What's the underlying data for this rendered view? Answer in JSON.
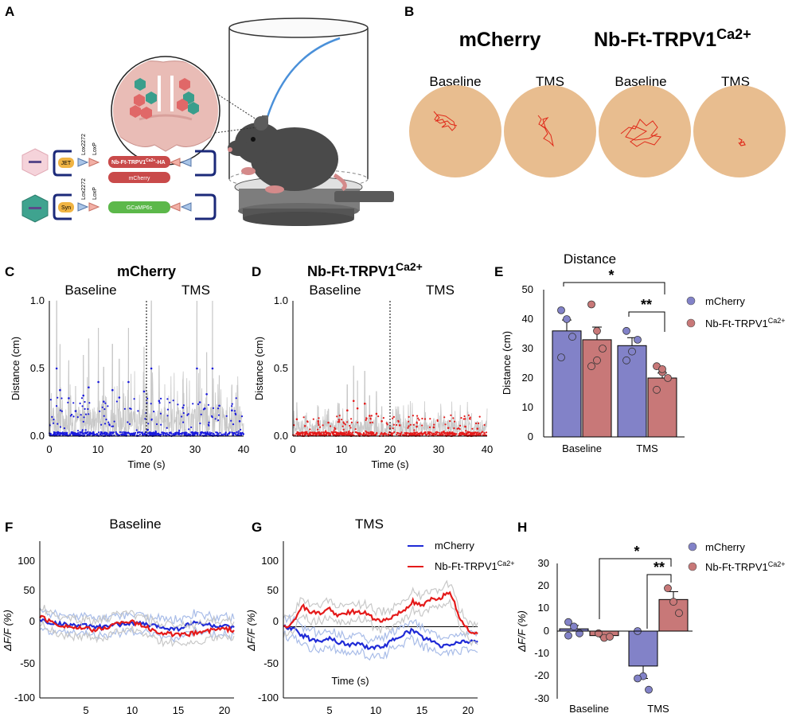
{
  "panel_labels": [
    "A",
    "B",
    "C",
    "D",
    "E",
    "F",
    "G",
    "H"
  ],
  "panel_a": {
    "vector_1": {
      "promoter": "JET",
      "site1": "Lox2272",
      "site2": "LoxP",
      "gene1": "Nb-Ft-TRPV1",
      "gene1_sup": "Ca2+",
      "gene1_suffix": "-HA",
      "gene2": "mCherry"
    },
    "vector_2": {
      "promoter": "Syn",
      "site1": "Lox2272",
      "site2": "LoxP",
      "gene1": "GCaMP6s"
    },
    "colors": {
      "dish": "#e9bcb6",
      "neuron_red": "#e06868",
      "neuron_teal": "#3a9e8c",
      "mouse": "#4a4a4a",
      "fiber": "#4a90d9"
    }
  },
  "panel_b": {
    "group1": "mCherry",
    "group2_main": "Nb-Ft-TRPV1",
    "group2_sup": "Ca2+",
    "arenas": [
      {
        "label": "Baseline",
        "group": "mCherry"
      },
      {
        "label": "TMS",
        "group": "mCherry"
      },
      {
        "label": "Baseline",
        "group": "Nb-Ft-TRPV1Ca2+"
      },
      {
        "label": "TMS",
        "group": "Nb-Ft-TRPV1Ca2+"
      }
    ],
    "arena_color": "#e8bd8f",
    "track_color": "#e02a1a"
  },
  "chart_data": [
    {
      "panel": "C",
      "type": "scatter",
      "title": "mCherry",
      "xlabel": "Time (s)",
      "ylabel": "Distance (cm)",
      "xlim": [
        0,
        40
      ],
      "ylim": [
        0,
        1.0
      ],
      "xticks": [
        "0",
        "10",
        "20",
        "30",
        "40"
      ],
      "yticks": [
        "0.0",
        "0.5",
        "1.0"
      ],
      "phase_labels": [
        "Baseline",
        "TMS"
      ],
      "divider_x": 20,
      "point_color": "#1a1adc",
      "trace_color": "#c8c8c8",
      "peaks": [
        [
          1.5,
          1.0
        ],
        [
          2.2,
          0.68
        ],
        [
          4.0,
          0.56
        ],
        [
          5.4,
          0.37
        ],
        [
          7.0,
          0.6
        ],
        [
          8.1,
          0.72
        ],
        [
          10.1,
          0.8
        ],
        [
          11.2,
          0.51
        ],
        [
          13.0,
          0.68
        ],
        [
          14.4,
          0.57
        ],
        [
          16.3,
          0.8
        ],
        [
          19.5,
          0.66
        ],
        [
          21.0,
          1.0
        ],
        [
          22.6,
          0.52
        ],
        [
          27.5,
          0.42
        ],
        [
          30.4,
          1.0
        ],
        [
          31.0,
          0.5
        ],
        [
          32.4,
          0.62
        ],
        [
          33.6,
          1.0
        ],
        [
          35.0,
          0.45
        ],
        [
          37.6,
          0.38
        ],
        [
          39.2,
          0.22
        ]
      ]
    },
    {
      "panel": "D",
      "type": "scatter",
      "title_main": "Nb-Ft-TRPV1",
      "title_sup": "Ca2+",
      "xlabel": "Time (s)",
      "ylabel": "Distance (cm)",
      "xlim": [
        0,
        40
      ],
      "ylim": [
        0,
        1.0
      ],
      "xticks": [
        "0",
        "10",
        "20",
        "30",
        "40"
      ],
      "yticks": [
        "0.0",
        "0.5",
        "1.0"
      ],
      "phase_labels": [
        "Baseline",
        "TMS"
      ],
      "divider_x": 20,
      "point_color": "#e41a1a",
      "trace_color": "#c8c8c8",
      "peaks": [
        [
          0.8,
          0.25
        ],
        [
          2.5,
          0.15
        ],
        [
          5.2,
          0.22
        ],
        [
          7.3,
          0.2
        ],
        [
          9.5,
          0.24
        ],
        [
          11.2,
          0.38
        ],
        [
          12.5,
          0.52
        ],
        [
          13.3,
          0.41
        ],
        [
          14.8,
          0.48
        ],
        [
          15.8,
          0.3
        ],
        [
          17.2,
          0.33
        ],
        [
          18.3,
          0.22
        ],
        [
          22.0,
          0.16
        ],
        [
          25.5,
          0.14
        ],
        [
          29.0,
          0.13
        ],
        [
          32.0,
          0.12
        ],
        [
          35.5,
          0.14
        ],
        [
          38.0,
          0.11
        ]
      ]
    },
    {
      "panel": "E",
      "type": "bar",
      "title": "Distance",
      "ylabel": "Distance (cm)",
      "ylim": [
        0,
        50
      ],
      "yticks": [
        "0",
        "10",
        "20",
        "30",
        "40",
        "50"
      ],
      "categories": [
        "Baseline",
        "TMS"
      ],
      "series": [
        {
          "name": "mCherry",
          "color": "#8282c8",
          "values": [
            36,
            31
          ],
          "sem": [
            3.7,
            2.7
          ],
          "points": [
            [
              43,
              40,
              34,
              27
            ],
            [
              36,
              29,
              33,
              26
            ]
          ]
        },
        {
          "name": "Nb-Ft-TRPV1",
          "name_sup": "Ca2+",
          "color": "#c87878",
          "values": [
            33,
            20
          ],
          "sem": [
            4.3,
            1.7
          ],
          "points": [
            [
              45,
              36,
              30,
              24,
              26
            ],
            [
              24,
              22,
              20,
              16,
              23
            ]
          ]
        }
      ],
      "significance": [
        {
          "label": "*",
          "between": "mCherry Baseline vs Nb TMS"
        },
        {
          "label": "**",
          "between": "mCherry TMS vs Nb TMS"
        }
      ]
    },
    {
      "panel": "F",
      "type": "line",
      "title": "Baseline",
      "ylabel": "ΔF/F (%)",
      "xlim": [
        0,
        21
      ],
      "ylim": [
        -100,
        120
      ],
      "xticks": [
        "5",
        "10",
        "15",
        "20"
      ],
      "yticks": [
        "100",
        "50",
        "0",
        "-50",
        "-100"
      ],
      "series": [
        {
          "name": "mCherry",
          "color": "#1f2ad6",
          "sem_color": "#a8bce8",
          "x": [
            0,
            1,
            2,
            3,
            4,
            5,
            6,
            7,
            8,
            9,
            10,
            11,
            12,
            13,
            14,
            15,
            16,
            17,
            18,
            19,
            20,
            21
          ],
          "y": [
            10,
            6,
            4,
            3,
            2,
            1,
            0,
            -1,
            2,
            4,
            5,
            4,
            2,
            0,
            -2,
            -3,
            3,
            6,
            3,
            1,
            0,
            -1
          ]
        },
        {
          "name": "Nb-Ft-TRPV1Ca2+",
          "color": "#e41a1a",
          "sem_color": "#c8c8c8",
          "x": [
            0,
            1,
            2,
            3,
            4,
            5,
            6,
            7,
            8,
            9,
            10,
            11,
            12,
            13,
            14,
            15,
            16,
            17,
            18,
            19,
            20,
            21
          ],
          "y": [
            15,
            8,
            3,
            1,
            -2,
            -3,
            -5,
            -2,
            3,
            8,
            6,
            2,
            -4,
            -8,
            -10,
            -12,
            -11,
            -8,
            -6,
            -4,
            -3,
            -5
          ]
        }
      ]
    },
    {
      "panel": "G",
      "type": "line",
      "title": "TMS",
      "ylabel": "ΔF/F (%)",
      "xlabel": "Time (s)",
      "xlim": [
        0,
        21
      ],
      "ylim": [
        -100,
        120
      ],
      "xticks": [
        "5",
        "10",
        "15",
        "20"
      ],
      "yticks": [
        "100",
        "50",
        "0",
        "-50",
        "-100"
      ],
      "legend": [
        "mCherry",
        "Nb-Ft-TRPV1"
      ],
      "legend_sup": "Ca2+",
      "series": [
        {
          "name": "mCherry",
          "color": "#1f2ad6",
          "sem_color": "#a8bce8",
          "x": [
            0,
            1,
            2,
            3,
            4,
            5,
            6,
            7,
            8,
            9,
            10,
            11,
            12,
            13,
            14,
            15,
            16,
            17,
            18,
            19,
            20,
            21
          ],
          "y": [
            0,
            -3,
            -12,
            -18,
            -19,
            -16,
            -22,
            -25,
            -24,
            -28,
            -30,
            -26,
            -18,
            -10,
            -5,
            -15,
            -20,
            -28,
            -25,
            -22,
            -20,
            -20
          ]
        },
        {
          "name": "Nb-Ft-TRPV1Ca2+",
          "color": "#e41a1a",
          "sem_color": "#c8c8c8",
          "x": [
            0,
            1,
            2,
            3,
            4,
            5,
            6,
            7,
            8,
            9,
            10,
            11,
            12,
            13,
            14,
            15,
            16,
            17,
            18,
            19,
            20,
            21
          ],
          "y": [
            0,
            5,
            30,
            20,
            18,
            25,
            15,
            20,
            22,
            18,
            10,
            8,
            15,
            22,
            35,
            28,
            38,
            40,
            50,
            15,
            -5,
            -10
          ]
        }
      ]
    },
    {
      "panel": "H",
      "type": "bar",
      "ylabel": "ΔF/F (%)",
      "ylim": [
        -30,
        30
      ],
      "yticks": [
        "30",
        "20",
        "10",
        "0",
        "-10",
        "-20",
        "-30"
      ],
      "categories": [
        "Baseline",
        "TMS"
      ],
      "legend": [
        "mCherry",
        "Nb-Ft-TRPV1"
      ],
      "legend_sup": "Ca2+",
      "series": [
        {
          "name": "mCherry",
          "color": "#8282c8",
          "values": [
            1,
            -15.5
          ],
          "sem": [
            1.5,
            5.5
          ],
          "points": [
            [
              4,
              2,
              -1,
              -2
            ],
            [
              0,
              -20,
              -26,
              -21
            ]
          ]
        },
        {
          "name": "Nb-Ft-TRPV1",
          "name_sup": "Ca2+",
          "color": "#c87878",
          "values": [
            -2,
            14
          ],
          "sem": [
            0.8,
            3.5
          ],
          "points": [
            [
              -1,
              -3,
              -2.5
            ],
            [
              19,
              13,
              8
            ]
          ]
        }
      ],
      "significance": [
        {
          "label": "*",
          "between": "Nb Baseline vs Nb TMS"
        },
        {
          "label": "**",
          "between": "mCherry TMS vs Nb TMS"
        }
      ]
    }
  ]
}
